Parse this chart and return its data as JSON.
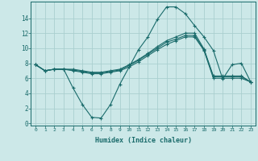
{
  "xlabel": "Humidex (Indice chaleur)",
  "background_color": "#cce8e8",
  "grid_color": "#aacfcf",
  "line_color": "#1a6b6b",
  "x_ticks": [
    0,
    1,
    2,
    3,
    4,
    5,
    6,
    7,
    8,
    9,
    10,
    11,
    12,
    13,
    14,
    15,
    16,
    17,
    18,
    19,
    20,
    21,
    22,
    23
  ],
  "y_ticks": [
    0,
    2,
    4,
    6,
    8,
    10,
    12,
    14
  ],
  "ylim": [
    -0.3,
    16.2
  ],
  "xlim": [
    -0.5,
    23.5
  ],
  "series": [
    [
      7.8,
      7.0,
      7.2,
      7.2,
      4.7,
      2.5,
      0.8,
      0.7,
      2.5,
      5.2,
      7.5,
      9.8,
      11.5,
      13.8,
      15.5,
      15.5,
      14.6,
      13.0,
      11.5,
      9.7,
      5.9,
      7.8,
      8.0,
      5.5
    ],
    [
      7.8,
      7.0,
      7.2,
      7.2,
      7.0,
      6.8,
      6.6,
      6.6,
      6.8,
      7.0,
      7.5,
      8.2,
      9.0,
      9.8,
      10.5,
      11.0,
      11.5,
      11.5,
      9.7,
      6.0,
      6.0,
      6.0,
      6.0,
      5.5
    ],
    [
      7.8,
      7.0,
      7.2,
      7.2,
      7.1,
      6.9,
      6.7,
      6.7,
      6.9,
      7.1,
      7.7,
      8.4,
      9.2,
      10.0,
      10.8,
      11.2,
      11.7,
      11.7,
      9.8,
      6.2,
      6.2,
      6.2,
      6.2,
      5.5
    ],
    [
      7.8,
      7.0,
      7.2,
      7.2,
      7.2,
      7.0,
      6.8,
      6.8,
      7.0,
      7.2,
      7.8,
      8.5,
      9.3,
      10.2,
      11.0,
      11.5,
      12.0,
      12.0,
      9.9,
      6.3,
      6.3,
      6.3,
      6.3,
      5.5
    ]
  ]
}
